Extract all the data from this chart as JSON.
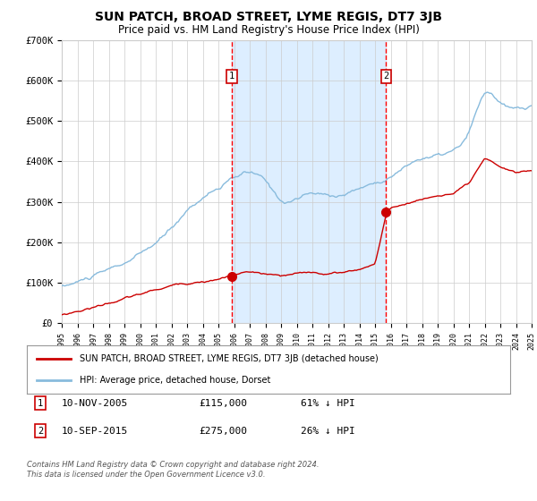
{
  "title": "SUN PATCH, BROAD STREET, LYME REGIS, DT7 3JB",
  "subtitle": "Price paid vs. HM Land Registry's House Price Index (HPI)",
  "title_fontsize": 10,
  "subtitle_fontsize": 8.5,
  "background_color": "#ffffff",
  "plot_bg_color": "#ffffff",
  "highlight_bg_color": "#ddeeff",
  "grid_color": "#cccccc",
  "hpi_color": "#88bbdd",
  "property_color": "#cc0000",
  "ylabel_ticks": [
    "£0",
    "£100K",
    "£200K",
    "£300K",
    "£400K",
    "£500K",
    "£600K",
    "£700K"
  ],
  "ytick_values": [
    0,
    100000,
    200000,
    300000,
    400000,
    500000,
    600000,
    700000
  ],
  "ylim": [
    0,
    700000
  ],
  "sale1_date": "10-NOV-2005",
  "sale1_price": 115000,
  "sale1_pct": "61% ↓ HPI",
  "sale1_year": 2005.87,
  "sale2_date": "10-SEP-2015",
  "sale2_price": 275000,
  "sale2_pct": "26% ↓ HPI",
  "sale2_year": 2015.7,
  "legend_line1": "SUN PATCH, BROAD STREET, LYME REGIS, DT7 3JB (detached house)",
  "legend_line2": "HPI: Average price, detached house, Dorset",
  "footnote1": "Contains HM Land Registry data © Crown copyright and database right 2024.",
  "footnote2": "This data is licensed under the Open Government Licence v3.0."
}
